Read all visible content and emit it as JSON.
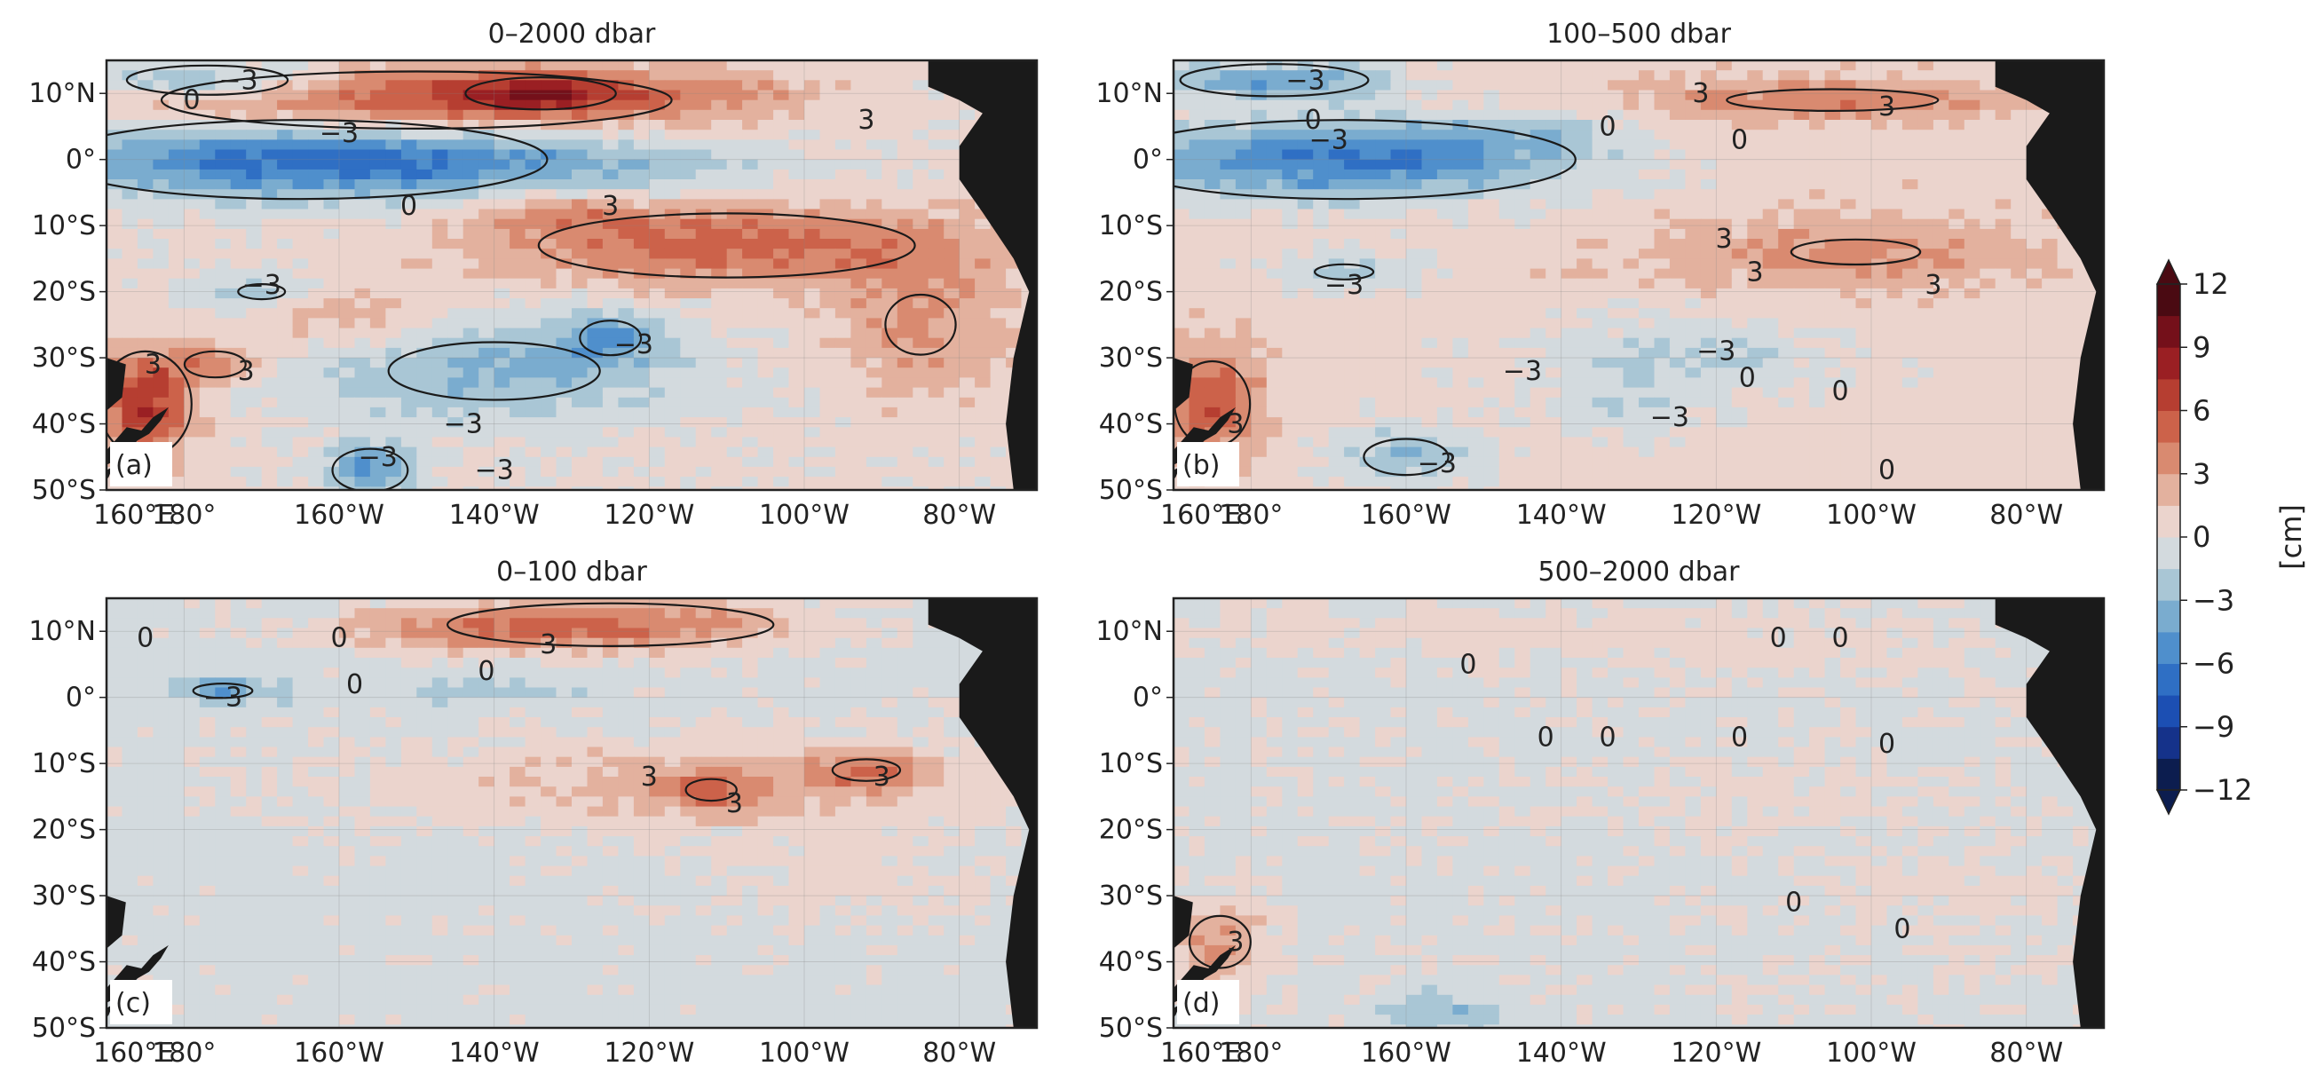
{
  "chart_data": {
    "type": "heatmap",
    "description_units": "cm",
    "colorbar": {
      "label": "[cm]",
      "min": -12,
      "max": 12,
      "step": 1.5,
      "ticks": [
        12,
        9,
        6,
        3,
        0,
        -3,
        -6,
        -9,
        -12
      ],
      "tick_labels": [
        "12",
        "9",
        "6",
        "3",
        "0",
        "−3",
        "−6",
        "−9",
        "−12"
      ],
      "levels": [
        {
          "lo": -12,
          "hi": -10.5,
          "color": "#0c1d4f"
        },
        {
          "lo": -10.5,
          "hi": -9,
          "color": "#15328a"
        },
        {
          "lo": -9,
          "hi": -7.5,
          "color": "#1c4fb3"
        },
        {
          "lo": -7.5,
          "hi": -6,
          "color": "#2f6fc4"
        },
        {
          "lo": -6,
          "hi": -4.5,
          "color": "#4f8fcc"
        },
        {
          "lo": -4.5,
          "hi": -3,
          "color": "#7aaccf"
        },
        {
          "lo": -3,
          "hi": -1.5,
          "color": "#a9c6d5"
        },
        {
          "lo": -1.5,
          "hi": 0,
          "color": "#d3dade"
        },
        {
          "lo": 0,
          "hi": 1.5,
          "color": "#ebd4cd"
        },
        {
          "lo": 1.5,
          "hi": 3,
          "color": "#e3b19e"
        },
        {
          "lo": 3,
          "hi": 4.5,
          "color": "#d98a70"
        },
        {
          "lo": 4.5,
          "hi": 6,
          "color": "#cc624a"
        },
        {
          "lo": 6,
          "hi": 7.5,
          "color": "#b63e31"
        },
        {
          "lo": 7.5,
          "hi": 9,
          "color": "#9a1f23"
        },
        {
          "lo": 9,
          "hi": 10.5,
          "color": "#74101a"
        },
        {
          "lo": 10.5,
          "hi": 12,
          "color": "#4a0a12"
        }
      ]
    },
    "axes": {
      "lon_range": [
        170,
        290
      ],
      "lat_range": [
        -50,
        15
      ],
      "x_ticks": [
        160,
        180,
        200,
        220,
        240,
        260,
        280
      ],
      "x_tick_labels": [
        "160°E",
        "180°",
        "160°W",
        "140°W",
        "120°W",
        "100°W",
        "80°W"
      ],
      "y_ticks": [
        10,
        0,
        -10,
        -20,
        -30,
        -40,
        -50
      ],
      "y_tick_labels": [
        "10°N",
        "0°",
        "10°S",
        "20°S",
        "30°S",
        "40°S",
        "50°S"
      ]
    },
    "land_color": "#1a1a1a",
    "contour_levels": [
      -3,
      0,
      3
    ],
    "panels": [
      {
        "id": "a",
        "label": "(a)",
        "title": "0–2000 dbar",
        "base": 0.3,
        "blobs": [
          {
            "lon": 210,
            "lat": 9,
            "rx": 38,
            "ry": 5,
            "v": 5.5
          },
          {
            "lon": 226,
            "lat": 10,
            "rx": 12,
            "ry": 3,
            "v": 5
          },
          {
            "lon": 250,
            "lat": 10,
            "rx": 10,
            "ry": 3,
            "v": 2
          },
          {
            "lon": 183,
            "lat": 12,
            "rx": 14,
            "ry": 3,
            "v": -4.5
          },
          {
            "lon": 195,
            "lat": 0,
            "rx": 32,
            "ry": 6,
            "v": -7
          },
          {
            "lon": 232,
            "lat": -1,
            "rx": 25,
            "ry": 4,
            "v": -2.5
          },
          {
            "lon": 250,
            "lat": -13,
            "rx": 30,
            "ry": 6,
            "v": 5
          },
          {
            "lon": 228,
            "lat": -8,
            "rx": 12,
            "ry": 3,
            "v": 2.5
          },
          {
            "lon": 275,
            "lat": -25,
            "rx": 12,
            "ry": 12,
            "v": 3
          },
          {
            "lon": 175,
            "lat": -37,
            "rx": 6,
            "ry": 8,
            "v": 7
          },
          {
            "lon": 184,
            "lat": -31,
            "rx": 6,
            "ry": 3,
            "v": 4
          },
          {
            "lon": 190,
            "lat": -20,
            "rx": 8,
            "ry": 3,
            "v": -3
          },
          {
            "lon": 220,
            "lat": -32,
            "rx": 25,
            "ry": 8,
            "v": -3.5
          },
          {
            "lon": 204,
            "lat": -47,
            "rx": 6,
            "ry": 4,
            "v": -5
          },
          {
            "lon": 235,
            "lat": -27,
            "rx": 6,
            "ry": 4,
            "v": -4
          },
          {
            "lon": 200,
            "lat": -24,
            "rx": 12,
            "ry": 5,
            "v": 2.5
          }
        ],
        "contour_labels": [
          {
            "lon": 187,
            "lat": 12,
            "t": "−3"
          },
          {
            "lon": 181,
            "lat": 9,
            "t": "0"
          },
          {
            "lon": 200,
            "lat": 4,
            "t": "−3"
          },
          {
            "lon": 209,
            "lat": -7,
            "t": "0"
          },
          {
            "lon": 235,
            "lat": -7,
            "t": "3"
          },
          {
            "lon": 268,
            "lat": 6,
            "t": "3"
          },
          {
            "lon": 190,
            "lat": -19,
            "t": "−3"
          },
          {
            "lon": 238,
            "lat": -28,
            "t": "−3"
          },
          {
            "lon": 216,
            "lat": -40,
            "t": "−3"
          },
          {
            "lon": 205,
            "lat": -45,
            "t": "−3"
          },
          {
            "lon": 220,
            "lat": -47,
            "t": "−3"
          },
          {
            "lon": 176,
            "lat": -31,
            "t": "3"
          },
          {
            "lon": 188,
            "lat": -32,
            "t": "3"
          }
        ]
      },
      {
        "id": "b",
        "label": "(b)",
        "title": "100–500 dbar",
        "base": 0.8,
        "blobs": [
          {
            "lon": 183,
            "lat": 12,
            "rx": 15,
            "ry": 3,
            "v": -5
          },
          {
            "lon": 192,
            "lat": 0,
            "rx": 30,
            "ry": 6,
            "v": -7
          },
          {
            "lon": 215,
            "lat": 4,
            "rx": 12,
            "ry": 3,
            "v": -1.5
          },
          {
            "lon": 255,
            "lat": 9,
            "rx": 25,
            "ry": 3,
            "v": 3.5
          },
          {
            "lon": 258,
            "lat": -14,
            "rx": 22,
            "ry": 5,
            "v": 3
          },
          {
            "lon": 175,
            "lat": -37,
            "rx": 6,
            "ry": 8,
            "v": 5
          },
          {
            "lon": 192,
            "lat": -17,
            "rx": 10,
            "ry": 3,
            "v": -3
          },
          {
            "lon": 235,
            "lat": -30,
            "rx": 20,
            "ry": 6,
            "v": -2.5
          },
          {
            "lon": 200,
            "lat": -45,
            "rx": 10,
            "ry": 5,
            "v": -3.5
          },
          {
            "lon": 228,
            "lat": -38,
            "rx": 10,
            "ry": 4,
            "v": -2
          }
        ],
        "contour_labels": [
          {
            "lon": 187,
            "lat": 12,
            "t": "−3"
          },
          {
            "lon": 188,
            "lat": 6,
            "t": "0"
          },
          {
            "lon": 190,
            "lat": 3,
            "t": "−3"
          },
          {
            "lon": 238,
            "lat": 10,
            "t": "3"
          },
          {
            "lon": 262,
            "lat": 8,
            "t": "3"
          },
          {
            "lon": 226,
            "lat": 5,
            "t": "0"
          },
          {
            "lon": 243,
            "lat": 3,
            "t": "0"
          },
          {
            "lon": 241,
            "lat": -12,
            "t": "3"
          },
          {
            "lon": 245,
            "lat": -17,
            "t": "3"
          },
          {
            "lon": 268,
            "lat": -19,
            "t": "3"
          },
          {
            "lon": 192,
            "lat": -19,
            "t": "−3"
          },
          {
            "lon": 240,
            "lat": -29,
            "t": "−3"
          },
          {
            "lon": 215,
            "lat": -32,
            "t": "−3"
          },
          {
            "lon": 244,
            "lat": -33,
            "t": "0"
          },
          {
            "lon": 256,
            "lat": -35,
            "t": "0"
          },
          {
            "lon": 234,
            "lat": -39,
            "t": "−3"
          },
          {
            "lon": 204,
            "lat": -46,
            "t": "−3"
          },
          {
            "lon": 262,
            "lat": -47,
            "t": "0"
          },
          {
            "lon": 178,
            "lat": -40,
            "t": "3"
          }
        ]
      },
      {
        "id": "c",
        "label": "(c)",
        "title": "0–100 dbar",
        "base": -0.6,
        "blobs": [
          {
            "lon": 235,
            "lat": 11,
            "rx": 26,
            "ry": 4,
            "v": 5
          },
          {
            "lon": 215,
            "lat": 10,
            "rx": 18,
            "ry": 3,
            "v": 2.5
          },
          {
            "lon": 185,
            "lat": 1,
            "rx": 7,
            "ry": 2,
            "v": -3.5
          },
          {
            "lon": 220,
            "lat": 1,
            "rx": 10,
            "ry": 2,
            "v": -2
          },
          {
            "lon": 248,
            "lat": -13,
            "rx": 40,
            "ry": 7,
            "v": 2.8
          },
          {
            "lon": 248,
            "lat": -14,
            "rx": 6,
            "ry": 3,
            "v": 3.5
          },
          {
            "lon": 268,
            "lat": -11,
            "rx": 8,
            "ry": 3,
            "v": 3.5
          },
          {
            "lon": 265,
            "lat": -28,
            "rx": 18,
            "ry": 8,
            "v": 1.2
          }
        ],
        "contour_labels": [
          {
            "lon": 175,
            "lat": 9,
            "t": "0"
          },
          {
            "lon": 200,
            "lat": 9,
            "t": "0"
          },
          {
            "lon": 227,
            "lat": 8,
            "t": "3"
          },
          {
            "lon": 202,
            "lat": 2,
            "t": "0"
          },
          {
            "lon": 219,
            "lat": 4,
            "t": "0"
          },
          {
            "lon": 185,
            "lat": 0,
            "t": "−3"
          },
          {
            "lon": 240,
            "lat": -12,
            "t": "3"
          },
          {
            "lon": 251,
            "lat": -16,
            "t": "3"
          },
          {
            "lon": 270,
            "lat": -12,
            "t": "3"
          }
        ]
      },
      {
        "id": "d",
        "label": "(d)",
        "title": "500–2000 dbar",
        "base": -0.4,
        "blobs": [
          {
            "lon": 215,
            "lat": 10,
            "rx": 50,
            "ry": 3,
            "v": 1.2
          },
          {
            "lon": 250,
            "lat": 6,
            "rx": 30,
            "ry": 3,
            "v": 0.8
          },
          {
            "lon": 176,
            "lat": -37,
            "rx": 6,
            "ry": 6,
            "v": 4
          },
          {
            "lon": 250,
            "lat": -14,
            "rx": 25,
            "ry": 5,
            "v": 0.8
          },
          {
            "lon": 205,
            "lat": -48,
            "rx": 8,
            "ry": 3,
            "v": -2.5
          },
          {
            "lon": 270,
            "lat": -30,
            "rx": 15,
            "ry": 10,
            "v": 0.8
          }
        ],
        "contour_labels": [
          {
            "lon": 208,
            "lat": 5,
            "t": "0"
          },
          {
            "lon": 248,
            "lat": 9,
            "t": "0"
          },
          {
            "lon": 256,
            "lat": 9,
            "t": "0"
          },
          {
            "lon": 218,
            "lat": -6,
            "t": "0"
          },
          {
            "lon": 226,
            "lat": -6,
            "t": "0"
          },
          {
            "lon": 243,
            "lat": -6,
            "t": "0"
          },
          {
            "lon": 262,
            "lat": -7,
            "t": "0"
          },
          {
            "lon": 178,
            "lat": -37,
            "t": "3"
          },
          {
            "lon": 250,
            "lat": -31,
            "t": "0"
          },
          {
            "lon": 264,
            "lat": -35,
            "t": "0"
          }
        ]
      }
    ]
  }
}
